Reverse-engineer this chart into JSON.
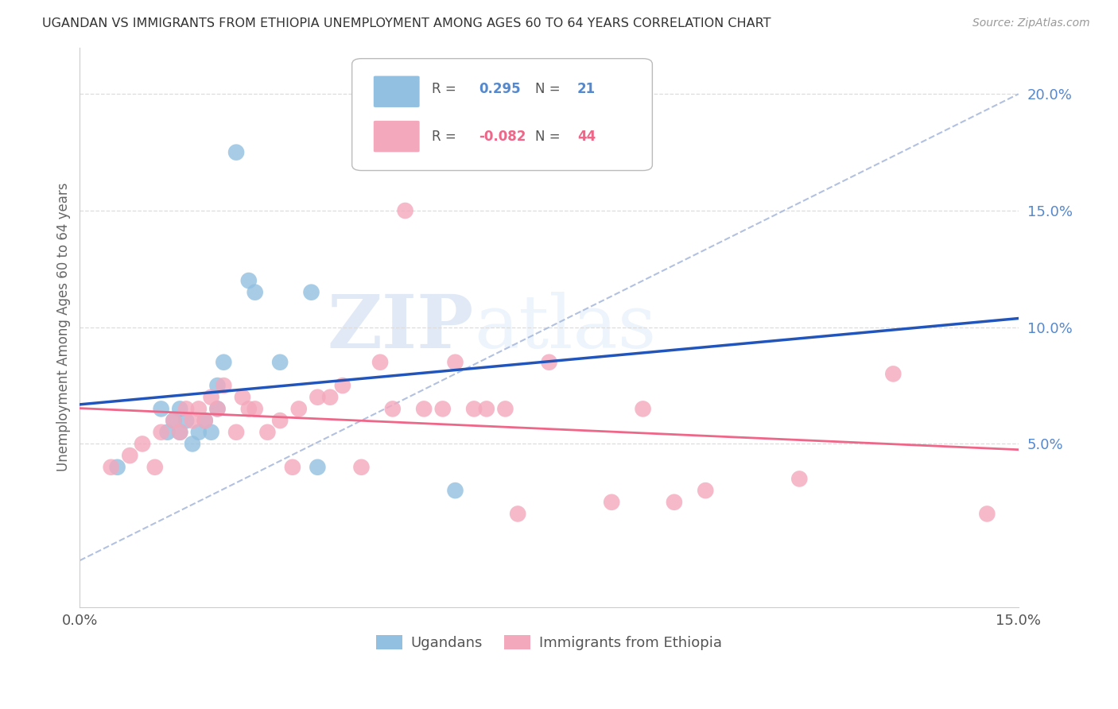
{
  "title": "UGANDAN VS IMMIGRANTS FROM ETHIOPIA UNEMPLOYMENT AMONG AGES 60 TO 64 YEARS CORRELATION CHART",
  "source": "Source: ZipAtlas.com",
  "ylabel": "Unemployment Among Ages 60 to 64 years",
  "xlim": [
    0.0,
    0.15
  ],
  "ylim": [
    -0.02,
    0.22
  ],
  "yticks_right": [
    0.05,
    0.1,
    0.15,
    0.2
  ],
  "ytick_labels_right": [
    "5.0%",
    "10.0%",
    "15.0%",
    "20.0%"
  ],
  "ugandan_R": 0.295,
  "ugandan_N": 21,
  "ethiopia_R": -0.082,
  "ethiopia_N": 44,
  "ugandan_color": "#92C0E0",
  "ethiopia_color": "#F4A8BC",
  "ugandan_line_color": "#2255BB",
  "ethiopia_line_color": "#EE6688",
  "dashed_line_color": "#AABBDD",
  "watermark_zip": "ZIP",
  "watermark_atlas": "atlas",
  "ugandan_x": [
    0.006,
    0.013,
    0.014,
    0.015,
    0.016,
    0.016,
    0.017,
    0.018,
    0.019,
    0.02,
    0.021,
    0.022,
    0.022,
    0.023,
    0.025,
    0.027,
    0.028,
    0.032,
    0.037,
    0.038,
    0.06
  ],
  "ugandan_y": [
    0.04,
    0.065,
    0.055,
    0.06,
    0.055,
    0.065,
    0.06,
    0.05,
    0.055,
    0.06,
    0.055,
    0.065,
    0.075,
    0.085,
    0.175,
    0.12,
    0.115,
    0.085,
    0.115,
    0.04,
    0.03
  ],
  "ethiopia_x": [
    0.005,
    0.008,
    0.01,
    0.012,
    0.013,
    0.015,
    0.016,
    0.017,
    0.018,
    0.019,
    0.02,
    0.021,
    0.022,
    0.023,
    0.025,
    0.026,
    0.027,
    0.028,
    0.03,
    0.032,
    0.034,
    0.035,
    0.038,
    0.04,
    0.042,
    0.045,
    0.048,
    0.05,
    0.052,
    0.055,
    0.058,
    0.06,
    0.063,
    0.065,
    0.068,
    0.07,
    0.075,
    0.085,
    0.09,
    0.095,
    0.1,
    0.115,
    0.13,
    0.145
  ],
  "ethiopia_y": [
    0.04,
    0.045,
    0.05,
    0.04,
    0.055,
    0.06,
    0.055,
    0.065,
    0.06,
    0.065,
    0.06,
    0.07,
    0.065,
    0.075,
    0.055,
    0.07,
    0.065,
    0.065,
    0.055,
    0.06,
    0.04,
    0.065,
    0.07,
    0.07,
    0.075,
    0.04,
    0.085,
    0.065,
    0.15,
    0.065,
    0.065,
    0.085,
    0.065,
    0.065,
    0.065,
    0.02,
    0.085,
    0.025,
    0.065,
    0.025,
    0.03,
    0.035,
    0.08,
    0.02
  ]
}
